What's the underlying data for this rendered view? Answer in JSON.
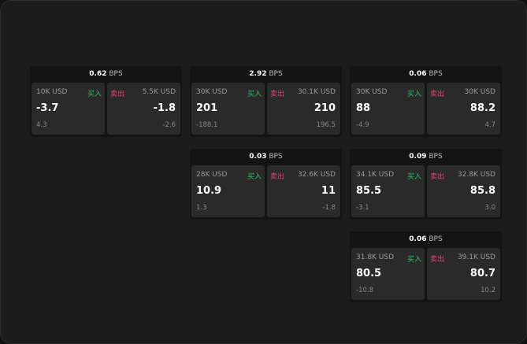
{
  "unit": "BPS",
  "buy_label": "买入",
  "sell_label": "卖出",
  "colors": {
    "buy": "#2fbf6a",
    "sell": "#e0456f"
  },
  "cards": [
    {
      "spread": "0.62",
      "bid": {
        "amount": "10K USD",
        "price": "-3.7",
        "change": "4.3"
      },
      "ask": {
        "amount": "5.5K USD",
        "price": "-1.8",
        "change": "-2.6"
      }
    },
    {
      "spread": "2.92",
      "bid": {
        "amount": "30K USD",
        "price": "201",
        "change": "-188.1"
      },
      "ask": {
        "amount": "30.1K USD",
        "price": "210",
        "change": "196.5"
      }
    },
    {
      "spread": "0.06",
      "bid": {
        "amount": "30K USD",
        "price": "88",
        "change": "-4.9"
      },
      "ask": {
        "amount": "30K USD",
        "price": "88.2",
        "change": "4.7"
      }
    },
    {
      "spread": "0.03",
      "bid": {
        "amount": "28K USD",
        "price": "10.9",
        "change": "1.3"
      },
      "ask": {
        "amount": "32.6K USD",
        "price": "11",
        "change": "-1.8"
      }
    },
    {
      "spread": "0.09",
      "bid": {
        "amount": "34.1K USD",
        "price": "85.5",
        "change": "-3.1"
      },
      "ask": {
        "amount": "32.8K USD",
        "price": "85.8",
        "change": "3.0"
      }
    },
    {
      "spread": "0.06",
      "bid": {
        "amount": "31.8K USD",
        "price": "80.5",
        "change": "-10.8"
      },
      "ask": {
        "amount": "39.1K USD",
        "price": "80.7",
        "change": "10.2"
      }
    }
  ]
}
